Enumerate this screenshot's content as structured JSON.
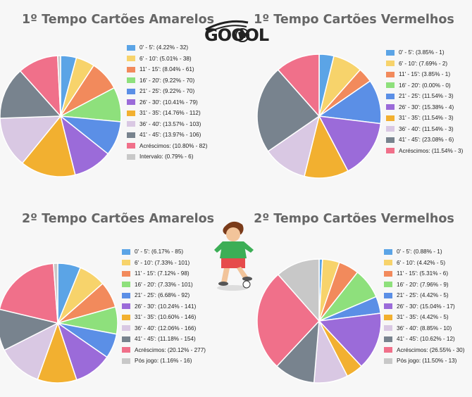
{
  "logo": {
    "text": "GOOOL"
  },
  "chart_data": [
    {
      "type": "pie",
      "title": "1º Tempo Cartões Amarelos",
      "labels": [
        "0' - 5': (4.22% - 32)",
        "6' - 10': (5.01% - 38)",
        "11' - 15': (8.04% - 61)",
        "16' - 20': (9.22% - 70)",
        "21' - 25': (9.22% - 70)",
        "26' - 30': (10.41% - 79)",
        "31' - 35': (14.76% - 112)",
        "36' - 40': (13.57% - 103)",
        "41' - 45': (13.97% - 106)",
        "Acréscimos: (10.80% - 82)",
        "Intervalo: (0.79% - 6)"
      ],
      "values": [
        32,
        38,
        61,
        70,
        70,
        79,
        112,
        103,
        106,
        82,
        6
      ],
      "colors": [
        "#5ba4e6",
        "#f7d36b",
        "#f28a5c",
        "#8ee07c",
        "#5b8fe6",
        "#9b6bd9",
        "#f2b030",
        "#d9c8e3",
        "#78838e",
        "#f0708a",
        "#c8c8c8"
      ]
    },
    {
      "type": "pie",
      "title": "1º Tempo Cartões Vermelhos",
      "labels": [
        "0' - 5': (3.85% - 1)",
        "6' - 10': (7.69% - 2)",
        "11' - 15': (3.85% - 1)",
        "16' - 20': (0.00% - 0)",
        "21' - 25': (11.54% - 3)",
        "26' - 30': (15.38% - 4)",
        "31' - 35': (11.54% - 3)",
        "36' - 40': (11.54% - 3)",
        "41' - 45': (23.08% - 6)",
        "Acréscimos: (11.54% - 3)"
      ],
      "values": [
        1,
        2,
        1,
        0,
        3,
        4,
        3,
        3,
        6,
        3
      ],
      "colors": [
        "#5ba4e6",
        "#f7d36b",
        "#f28a5c",
        "#8ee07c",
        "#5b8fe6",
        "#9b6bd9",
        "#f2b030",
        "#d9c8e3",
        "#78838e",
        "#f0708a"
      ]
    },
    {
      "type": "pie",
      "title": "2º Tempo Cartões Amarelos",
      "labels": [
        "0' - 5': (6.17% - 85)",
        "6' - 10': (7.33% - 101)",
        "11' - 15': (7.12% - 98)",
        "16' - 20': (7.33% - 101)",
        "21' - 25': (6.68% - 92)",
        "26' - 30': (10.24% - 141)",
        "31' - 35': (10.60% - 146)",
        "36' - 40': (12.06% - 166)",
        "41' - 45': (11.18% - 154)",
        "Acréscimos: (20.12% - 277)",
        "Pós jogo: (1.16% - 16)"
      ],
      "values": [
        85,
        101,
        98,
        101,
        92,
        141,
        146,
        166,
        154,
        277,
        16
      ],
      "colors": [
        "#5ba4e6",
        "#f7d36b",
        "#f28a5c",
        "#8ee07c",
        "#5b8fe6",
        "#9b6bd9",
        "#f2b030",
        "#d9c8e3",
        "#78838e",
        "#f0708a",
        "#c8c8c8"
      ]
    },
    {
      "type": "pie",
      "title": "2º Tempo Cartões Vermelhos",
      "labels": [
        "0' - 5': (0.88% - 1)",
        "6' - 10': (4.42% - 5)",
        "11' - 15': (5.31% - 6)",
        "16' - 20': (7.96% - 9)",
        "21' - 25': (4.42% - 5)",
        "26' - 30': (15.04% - 17)",
        "31' - 35': (4.42% - 5)",
        "36' - 40': (8.85% - 10)",
        "41' - 45': (10.62% - 12)",
        "Acréscimos: (26.55% - 30)",
        "Pós jogo: (11.50% - 13)"
      ],
      "values": [
        1,
        5,
        6,
        9,
        5,
        17,
        5,
        10,
        12,
        30,
        13
      ],
      "colors": [
        "#5ba4e6",
        "#f7d36b",
        "#f28a5c",
        "#8ee07c",
        "#5b8fe6",
        "#9b6bd9",
        "#f2b030",
        "#d9c8e3",
        "#78838e",
        "#f0708a",
        "#c8c8c8"
      ]
    }
  ]
}
